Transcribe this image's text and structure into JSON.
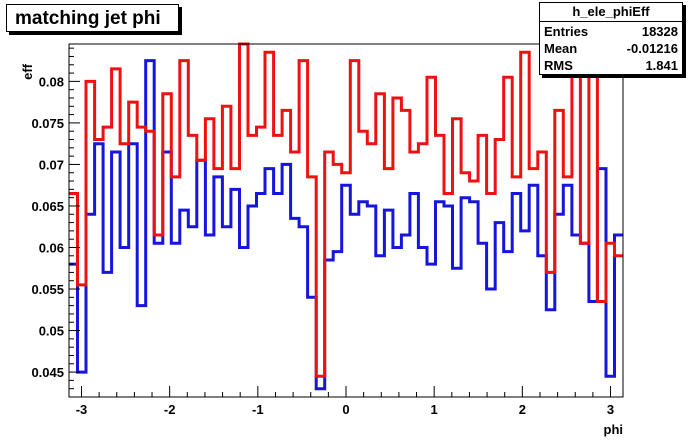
{
  "title": "matching jet phi",
  "stats": {
    "name": "h_ele_phiEff",
    "rows": [
      {
        "key": "Entries",
        "value": "18328"
      },
      {
        "key": "Mean",
        "value": "-0.01216"
      },
      {
        "key": "RMS",
        "value": "1.841"
      }
    ]
  },
  "chart_data": {
    "type": "line",
    "title": "matching jet phi",
    "xlabel": "phi",
    "ylabel": "eff",
    "xlim": [
      -3.1416,
      3.1416
    ],
    "ylim": [
      0.042,
      0.0845
    ],
    "x_ticks": [
      -3,
      -2,
      -1,
      0,
      1,
      2,
      3
    ],
    "y_ticks": [
      0.045,
      0.05,
      0.055,
      0.06,
      0.065,
      0.07,
      0.075,
      0.08
    ],
    "y_tick_labels": [
      "0.045",
      "0.05",
      "0.055",
      "0.06",
      "0.065",
      "0.07",
      "0.075",
      "0.08"
    ],
    "step": true,
    "grid": false,
    "series": [
      {
        "color": "#1515dd",
        "values": [
          0.058,
          0.045,
          0.064,
          0.0725,
          0.057,
          0.0715,
          0.06,
          0.0725,
          0.053,
          0.0825,
          0.0605,
          0.0715,
          0.0605,
          0.0645,
          0.0625,
          0.0705,
          0.0615,
          0.0685,
          0.0625,
          0.067,
          0.06,
          0.065,
          0.0665,
          0.0695,
          0.0665,
          0.07,
          0.0635,
          0.0625,
          0.054,
          0.043,
          0.0585,
          0.0595,
          0.0675,
          0.064,
          0.0655,
          0.065,
          0.059,
          0.0645,
          0.06,
          0.0615,
          0.0665,
          0.06,
          0.058,
          0.0655,
          0.065,
          0.0575,
          0.066,
          0.0655,
          0.0605,
          0.055,
          0.063,
          0.0595,
          0.0665,
          0.062,
          0.0675,
          0.059,
          0.0525,
          0.064,
          0.0675,
          0.0615,
          0.0605,
          0.0535,
          0.0695,
          0.0445,
          0.0615
        ]
      },
      {
        "color": "#ee1111",
        "values": [
          0.0665,
          0.0555,
          0.08,
          0.073,
          0.0745,
          0.0815,
          0.0725,
          0.0775,
          0.0745,
          0.074,
          0.0615,
          0.0785,
          0.0685,
          0.0825,
          0.0735,
          0.0705,
          0.0755,
          0.0695,
          0.077,
          0.0695,
          0.085,
          0.0735,
          0.0745,
          0.0835,
          0.0735,
          0.0765,
          0.0715,
          0.0825,
          0.0685,
          0.0445,
          0.0715,
          0.07,
          0.069,
          0.0825,
          0.074,
          0.0725,
          0.0785,
          0.0695,
          0.078,
          0.0765,
          0.0715,
          0.0725,
          0.0805,
          0.0735,
          0.0665,
          0.0755,
          0.069,
          0.068,
          0.0735,
          0.0665,
          0.073,
          0.0805,
          0.0685,
          0.0835,
          0.0695,
          0.0715,
          0.057,
          0.0765,
          0.0685,
          0.0815,
          0.0605,
          0.0815,
          0.0535,
          0.0605,
          0.059
        ]
      }
    ]
  }
}
